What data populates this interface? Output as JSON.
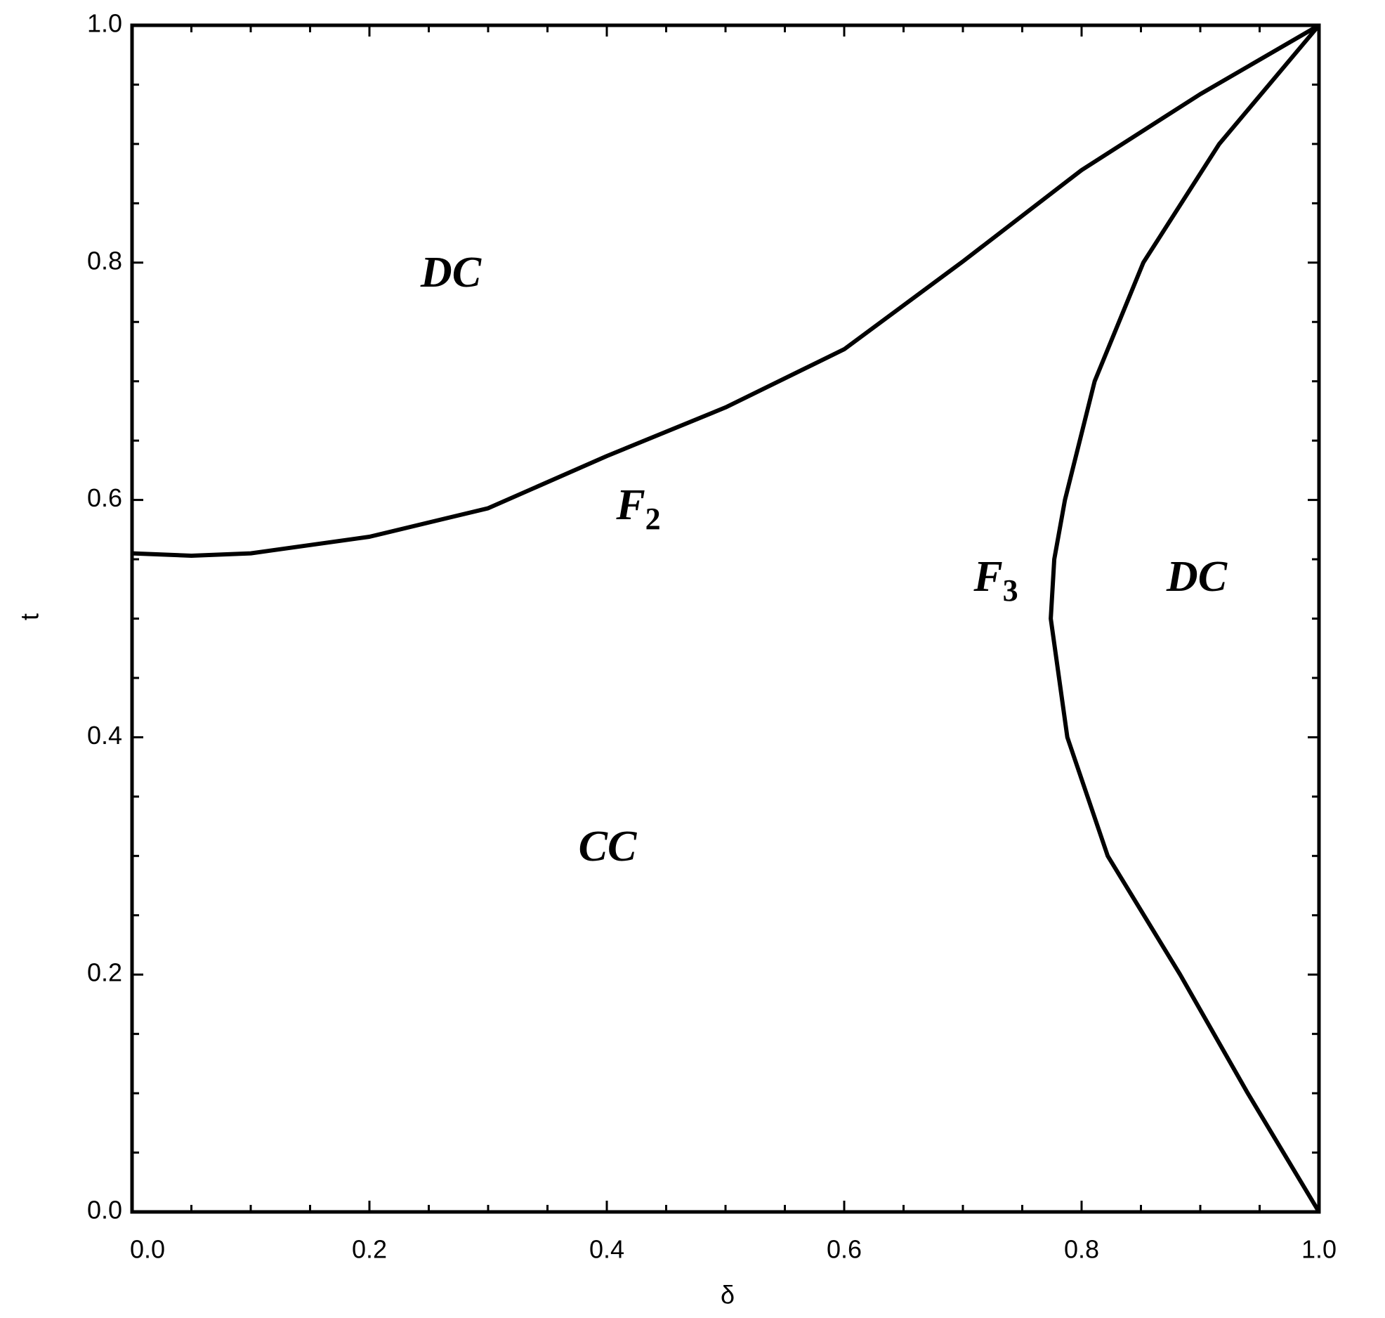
{
  "chart_data": {
    "type": "line",
    "x_label": "δ",
    "y_label": "t",
    "xlim": [
      0,
      1
    ],
    "ylim": [
      0,
      1
    ],
    "xticks": [
      {
        "value": 0,
        "label": "0.0"
      },
      {
        "value": 0.2,
        "label": "0.2"
      },
      {
        "value": 0.4,
        "label": "0.4"
      },
      {
        "value": 0.6,
        "label": "0.6"
      },
      {
        "value": 0.8,
        "label": "0.8"
      },
      {
        "value": 1,
        "label": "1.0"
      }
    ],
    "yticks": [
      {
        "value": 0,
        "label": "0.0"
      },
      {
        "value": 0.2,
        "label": "0.2"
      },
      {
        "value": 0.4,
        "label": "0.4"
      },
      {
        "value": 0.6,
        "label": "0.6"
      },
      {
        "value": 0.8,
        "label": "0.8"
      },
      {
        "value": 1,
        "label": "1.0"
      }
    ],
    "xminorticks": [
      0.05,
      0.1,
      0.15,
      0.25,
      0.3,
      0.35,
      0.45,
      0.5,
      0.55,
      0.65,
      0.7,
      0.75,
      0.85,
      0.9,
      0.95
    ],
    "yminorticks": [
      0.05,
      0.1,
      0.15,
      0.25,
      0.3,
      0.35,
      0.45,
      0.5,
      0.55,
      0.65,
      0.7,
      0.75,
      0.85,
      0.9,
      0.95
    ],
    "series": [
      {
        "color": "#000000",
        "x": [
          0,
          0.05,
          0.1,
          0.2,
          0.3,
          0.4,
          0.5,
          0.6,
          0.7,
          0.8,
          0.9,
          1.0
        ],
        "values": [
          0.555,
          0.553,
          0.555,
          0.569,
          0.593,
          0.637,
          0.678,
          0.727,
          0.801,
          0.878,
          0.942,
          1.0
        ]
      },
      {
        "color": "#000000",
        "x": [
          1.0,
          0.94,
          0.883,
          0.822,
          0.788,
          0.774,
          0.777,
          0.786,
          0.811,
          0.852,
          0.916,
          1.0
        ],
        "values": [
          0,
          0.1,
          0.2,
          0.3,
          0.4,
          0.5,
          0.55,
          0.6,
          0.7,
          0.8,
          0.9,
          1.0
        ]
      }
    ],
    "annotations": [
      {
        "text": "DC"
      },
      {
        "text": "F",
        "subscript": "2"
      },
      {
        "text": "F",
        "subscript": "3"
      },
      {
        "text": "DC"
      },
      {
        "text": "CC"
      }
    ]
  }
}
